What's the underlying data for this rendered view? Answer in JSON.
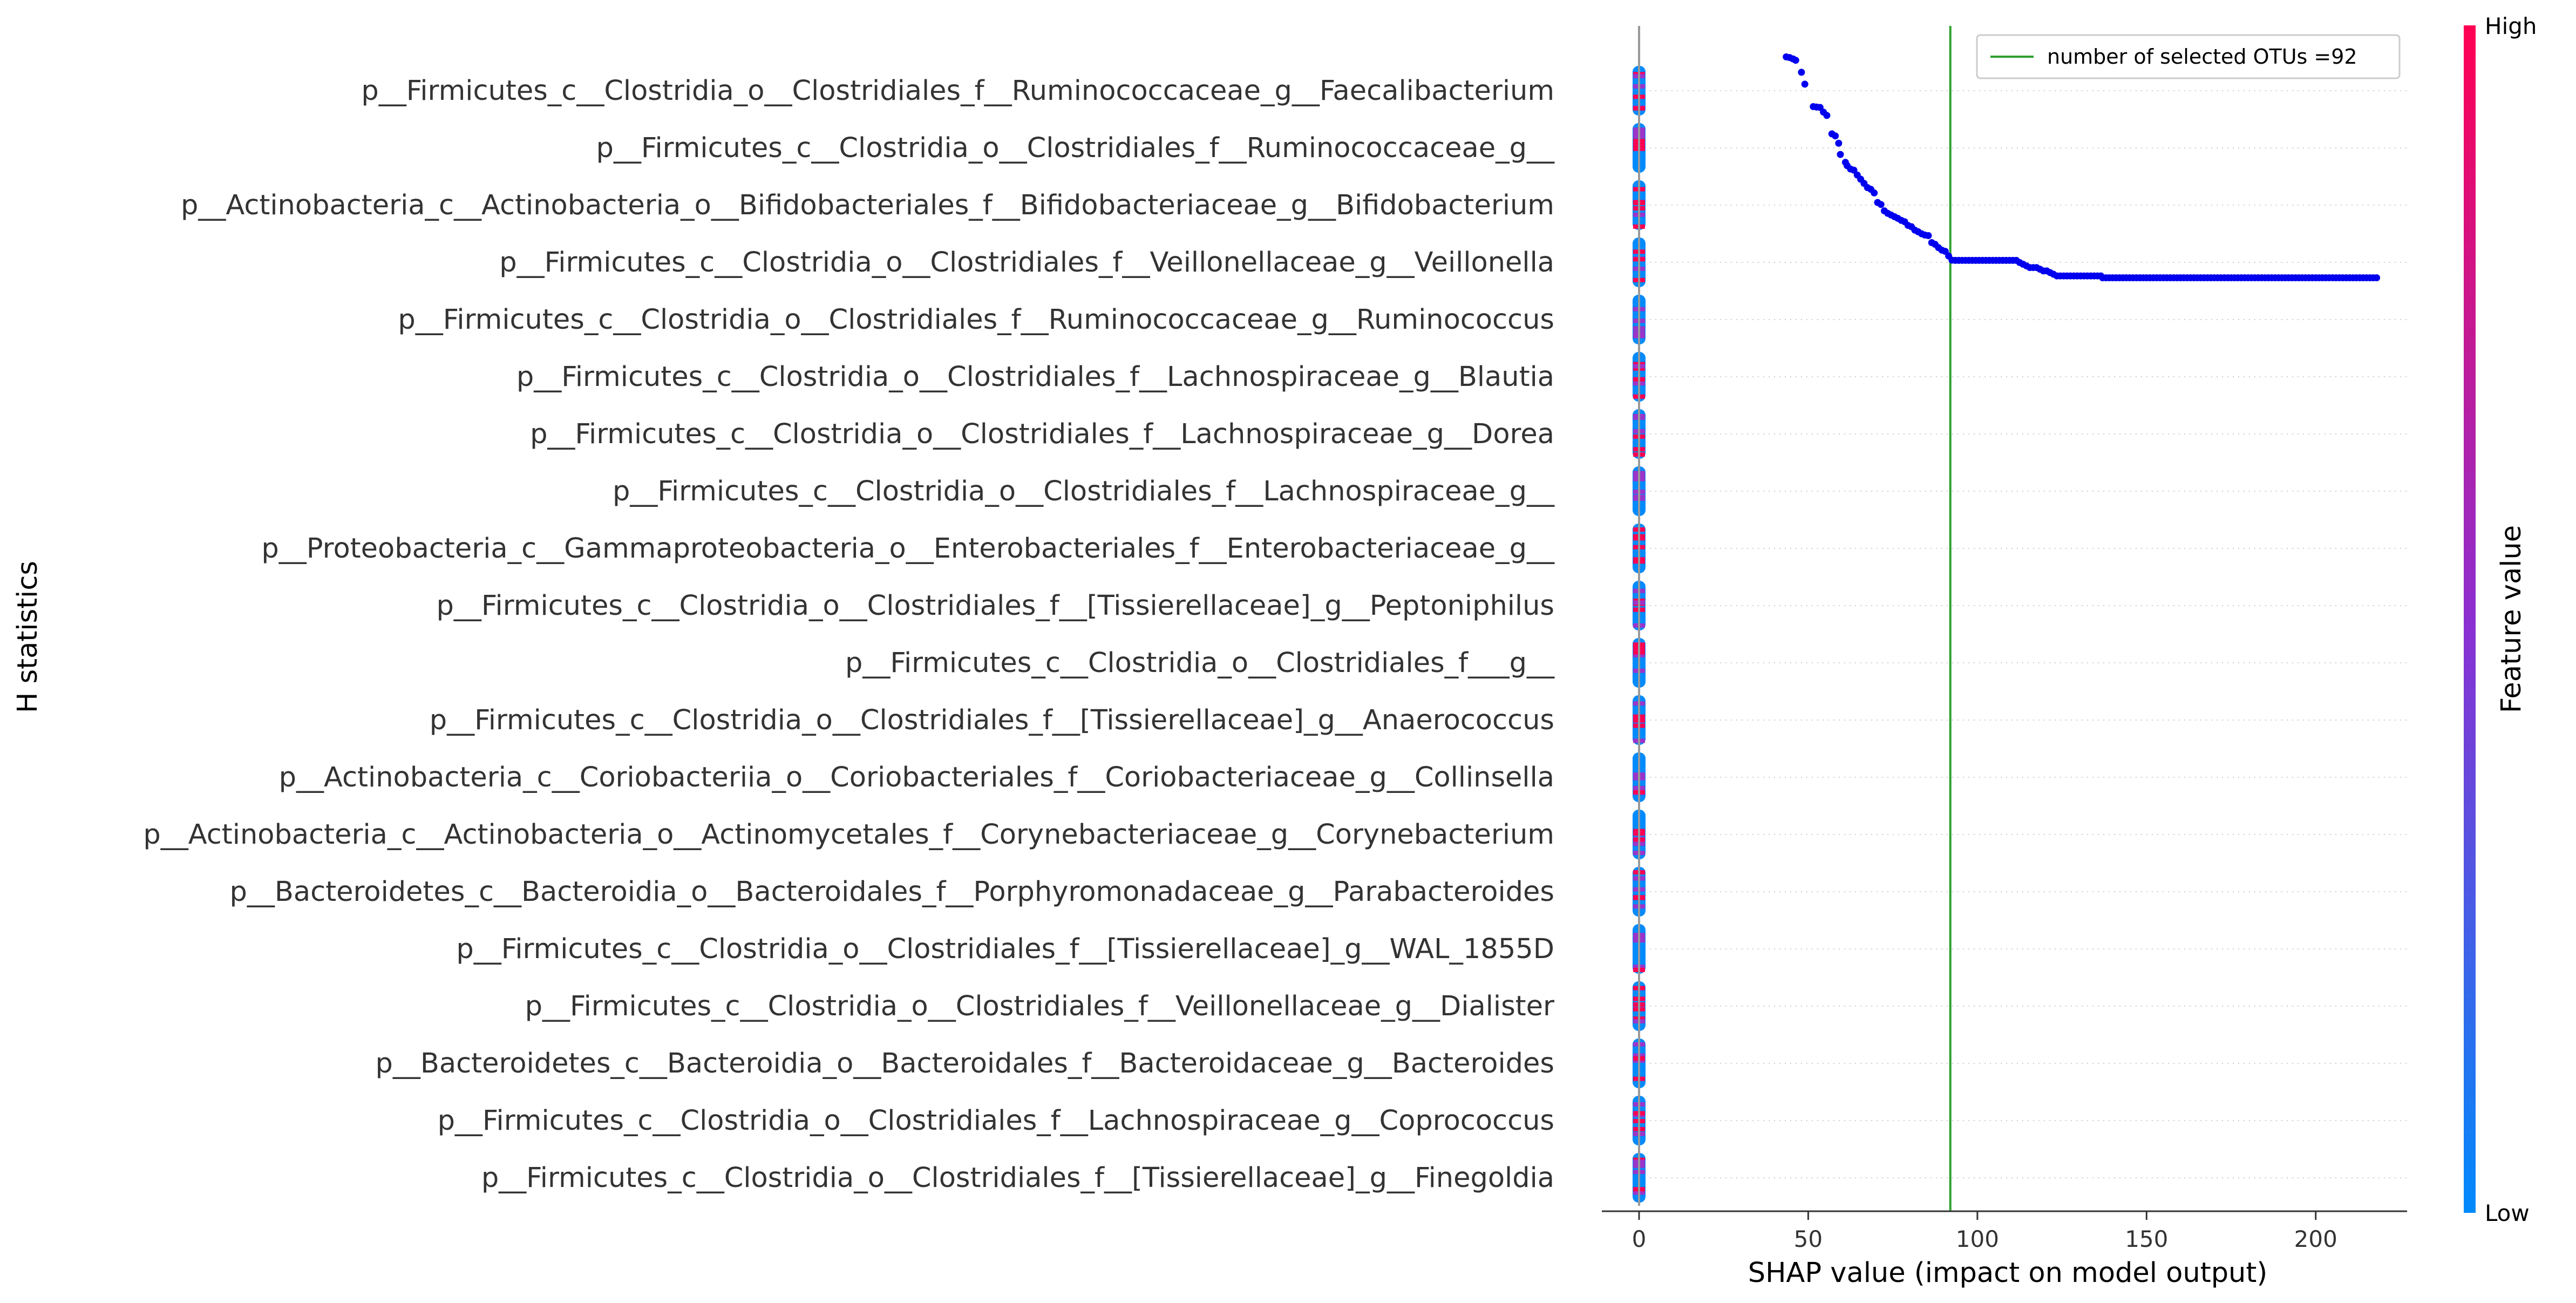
{
  "chart_data": {
    "type": "scatter",
    "xlabel": "SHAP value (impact on model output)",
    "ylabel": "H statistics",
    "xlim": [
      -11,
      227
    ],
    "xticks": [
      0,
      50,
      100,
      150,
      200
    ],
    "features": [
      "p__Firmicutes_c__Clostridia_o__Clostridiales_f__Ruminococcaceae_g__Faecalibacterium",
      "p__Firmicutes_c__Clostridia_o__Clostridiales_f__Ruminococcaceae_g__",
      "p__Actinobacteria_c__Actinobacteria_o__Bifidobacteriales_f__Bifidobacteriaceae_g__Bifidobacterium",
      "p__Firmicutes_c__Clostridia_o__Clostridiales_f__Veillonellaceae_g__Veillonella",
      "p__Firmicutes_c__Clostridia_o__Clostridiales_f__Ruminococcaceae_g__Ruminococcus",
      "p__Firmicutes_c__Clostridia_o__Clostridiales_f__Lachnospiraceae_g__Blautia",
      "p__Firmicutes_c__Clostridia_o__Clostridiales_f__Lachnospiraceae_g__Dorea",
      "p__Firmicutes_c__Clostridia_o__Clostridiales_f__Lachnospiraceae_g__",
      "p__Proteobacteria_c__Gammaproteobacteria_o__Enterobacteriales_f__Enterobacteriaceae_g__",
      "p__Firmicutes_c__Clostridia_o__Clostridiales_f__[Tissierellaceae]_g__Peptoniphilus",
      "p__Firmicutes_c__Clostridia_o__Clostridiales_f___g__",
      "p__Firmicutes_c__Clostridia_o__Clostridiales_f__[Tissierellaceae]_g__Anaerococcus",
      "p__Actinobacteria_c__Coriobacteriia_o__Coriobacteriales_f__Coriobacteriaceae_g__Collinsella",
      "p__Actinobacteria_c__Actinobacteria_o__Actinomycetales_f__Corynebacteriaceae_g__Corynebacterium",
      "p__Bacteroidetes_c__Bacteroidia_o__Bacteroidales_f__Porphyromonadaceae_g__Parabacteroides",
      "p__Firmicutes_c__Clostridia_o__Clostridiales_f__[Tissierellaceae]_g__WAL_1855D",
      "p__Firmicutes_c__Clostridia_o__Clostridiales_f__Veillonellaceae_g__Dialister",
      "p__Bacteroidetes_c__Bacteroidia_o__Bacteroidales_f__Bacteroidaceae_g__Bacteroides",
      "p__Firmicutes_c__Clostridia_o__Clostridiales_f__Lachnospiraceae_g__Coprococcus",
      "p__Firmicutes_c__Clostridia_o__Clostridiales_f__[Tissierellaceae]_g__Finegoldia"
    ],
    "h_statistic_curve": {
      "x": [
        43.5,
        44.5,
        45.5,
        46.3,
        48.0,
        49.0,
        51.5,
        52.5,
        53.5,
        54.5,
        55.5,
        57.0,
        58.0,
        59.0,
        59.5,
        61.0,
        61.5,
        62.5,
        63.5,
        64.5,
        65.5,
        66.5,
        67.5,
        68.5,
        69.5,
        70.5,
        71.5,
        72.5,
        73.5,
        74.5,
        75.5,
        76.5,
        77.5,
        78.5,
        79.5,
        80.5,
        81.5,
        82.5,
        83.5,
        84.5,
        85.5,
        86.5,
        87.5,
        88.5,
        89.5,
        90.5,
        91.5,
        92.5,
        93.5,
        94.5,
        95.5,
        96.5,
        97.5,
        98.5,
        99.5,
        100.5,
        101.5,
        102.5,
        103.5,
        104.5,
        105.5,
        106.5,
        107.5,
        108.5,
        109.5,
        110.5,
        111.5,
        112.5,
        113.5,
        114.5,
        115.5,
        116.5,
        117.5,
        118.5,
        119.5,
        120.5,
        121.5,
        122.5,
        123.5,
        124.5,
        125.5,
        126.5,
        127.5,
        128.5,
        129.5,
        130.5,
        131.5,
        132.5,
        133.5,
        134.5,
        135.5,
        136.5
      ],
      "rank_from_top": [
        1.0,
        1.4,
        2.2,
        3.0,
        10.2,
        17.3,
        30.7,
        31.0,
        31.2,
        34.0,
        36.0,
        47.0,
        48.2,
        52.6,
        59.3,
        64.0,
        66.0,
        68.0,
        68.7,
        71.6,
        74.1,
        76.6,
        79.1,
        80.1,
        82.3,
        88.0,
        89.2,
        93.0,
        94.5,
        95.5,
        96.5,
        97.5,
        98.7,
        99.5,
        101.7,
        102.5,
        104.5,
        105.5,
        106.7,
        107.5,
        107.8,
        112.0,
        113.0,
        115.0,
        116.5,
        117.2,
        120.0,
        122.5,
        122.6,
        122.6,
        122.6,
        122.6,
        122.6,
        122.6,
        122.6,
        122.6,
        122.6,
        122.6,
        122.6,
        122.6,
        122.6,
        122.6,
        122.6,
        122.6,
        122.6,
        122.6,
        122.6,
        123.9,
        124.9,
        125.9,
        126.9,
        126.9,
        126.9,
        127.9,
        128.9,
        128.9,
        129.9,
        130.9,
        131.9,
        131.9,
        131.9,
        131.9,
        131.9,
        131.9,
        131.9,
        131.9,
        131.9,
        131.9,
        131.9,
        131.9,
        131.9,
        131.9
      ],
      "tail_x_range": [
        137,
        218
      ],
      "tail_rank": 133.0
    },
    "selected_otus_line": {
      "x": 92,
      "label": "number of selected OTUs =92",
      "color": "#2ca02c"
    },
    "legend": {
      "placement": "top-right"
    },
    "colorbar": {
      "title": "Feature value",
      "high_label": "High",
      "low_label": "Low",
      "low_color": "#008afb",
      "high_color": "#ff0052"
    },
    "colors": {
      "curve_points": "#0000ee",
      "zero_line": "#999999",
      "gridline": "#cccccc",
      "label_text": "#333333"
    }
  }
}
